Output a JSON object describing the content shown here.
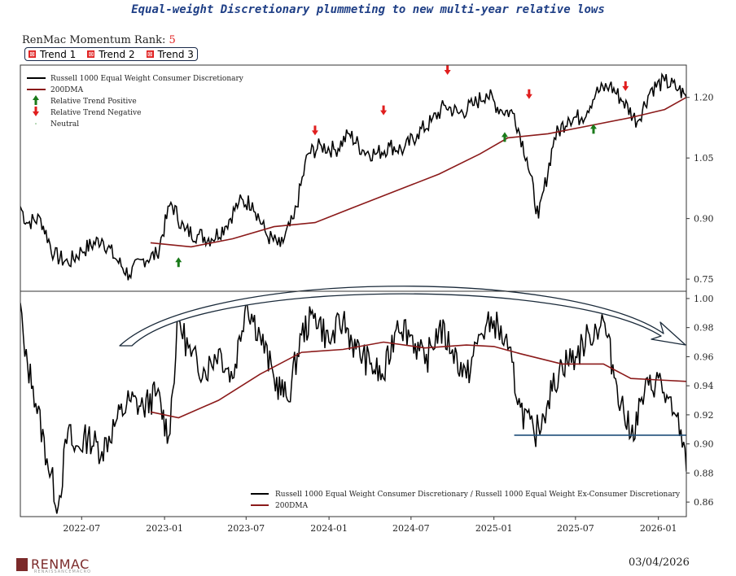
{
  "header": {
    "title": "Equal-weight Discretionary plummeting to new multi-year relative lows",
    "rank_label": "RenMac Momentum Rank: ",
    "rank_value": "5",
    "trends": [
      "Trend 1",
      "Trend 2",
      "Trend 3"
    ]
  },
  "footer": {
    "brand": "RENMAC",
    "brand_sub": "RENAISSANCEMACRO",
    "date": "03/04/2026"
  },
  "colors": {
    "price": "#000000",
    "dma": "#8b1a1a",
    "positive": "#1a7a1a",
    "negative": "#e01e1e",
    "support_line": "#1f4e79",
    "arrow": "#1a2a3a"
  },
  "chart_data": [
    {
      "type": "line",
      "title": "",
      "ylim": [
        0.72,
        1.28
      ],
      "xlim": [
        "2022-02-15",
        "2026-03-04"
      ],
      "yticks": [
        "0.75",
        "0.90",
        "1.05",
        "1.20"
      ],
      "legend": [
        "Russell 1000 Equal Weight Consumer Discretionary",
        "200DMA",
        "Relative Trend Positive",
        "Relative Trend Negative",
        "Neutral"
      ],
      "legend_position": "top-left",
      "series": [
        {
          "name": "Russell 1000 Equal Weight Consumer Discretionary",
          "x": [
            "2022-02-15",
            "2022-03-01",
            "2022-04-01",
            "2022-05-01",
            "2022-06-01",
            "2022-07-01",
            "2022-08-15",
            "2022-09-15",
            "2022-10-15",
            "2022-11-15",
            "2022-12-15",
            "2023-01-15",
            "2023-02-15",
            "2023-03-15",
            "2023-04-15",
            "2023-05-15",
            "2023-06-15",
            "2023-07-15",
            "2023-08-15",
            "2023-09-15",
            "2023-10-15",
            "2023-11-15",
            "2023-12-15",
            "2024-01-15",
            "2024-02-15",
            "2024-03-15",
            "2024-04-15",
            "2024-05-15",
            "2024-06-15",
            "2024-07-15",
            "2024-08-15",
            "2024-09-15",
            "2024-10-15",
            "2024-11-15",
            "2024-12-15",
            "2025-01-15",
            "2025-02-15",
            "2025-03-15",
            "2025-04-10",
            "2025-05-15",
            "2025-06-15",
            "2025-07-15",
            "2025-08-15",
            "2025-09-15",
            "2025-10-15",
            "2025-11-15",
            "2025-12-15",
            "2026-01-15",
            "2026-02-15",
            "2026-03-04"
          ],
          "values": [
            0.93,
            0.89,
            0.9,
            0.81,
            0.79,
            0.82,
            0.85,
            0.8,
            0.76,
            0.8,
            0.81,
            0.94,
            0.87,
            0.86,
            0.85,
            0.88,
            0.94,
            0.94,
            0.86,
            0.83,
            0.9,
            1.06,
            1.08,
            1.07,
            1.11,
            1.07,
            1.06,
            1.08,
            1.07,
            1.11,
            1.14,
            1.18,
            1.16,
            1.18,
            1.21,
            1.17,
            1.16,
            1.05,
            0.9,
            1.1,
            1.15,
            1.15,
            1.21,
            1.23,
            1.19,
            1.14,
            1.22,
            1.24,
            1.22,
            1.2
          ]
        },
        {
          "name": "200DMA",
          "x": [
            "2022-12-01",
            "2023-03-01",
            "2023-06-01",
            "2023-09-01",
            "2023-12-01",
            "2024-03-01",
            "2024-06-01",
            "2024-09-01",
            "2024-12-01",
            "2025-02-01",
            "2025-05-01",
            "2025-08-01",
            "2025-11-01",
            "2026-01-15",
            "2026-03-04"
          ],
          "values": [
            0.84,
            0.83,
            0.85,
            0.88,
            0.89,
            0.93,
            0.97,
            1.01,
            1.06,
            1.1,
            1.11,
            1.13,
            1.15,
            1.17,
            1.2
          ]
        }
      ],
      "markers": {
        "positive": [
          [
            "2023-02-01",
            0.79
          ],
          [
            "2025-01-25",
            1.1
          ],
          [
            "2025-08-10",
            1.12
          ]
        ],
        "negative": [
          [
            "2023-12-01",
            1.12
          ],
          [
            "2024-05-01",
            1.17
          ],
          [
            "2024-09-20",
            1.27
          ],
          [
            "2025-03-20",
            1.21
          ],
          [
            "2025-10-20",
            1.23
          ]
        ]
      }
    },
    {
      "type": "line",
      "title": "",
      "ylim": [
        0.85,
        1.005
      ],
      "xlim": [
        "2022-02-15",
        "2026-03-04"
      ],
      "yticks": [
        "0.86",
        "0.88",
        "0.90",
        "0.92",
        "0.94",
        "0.96",
        "0.98",
        "1.00"
      ],
      "xticks": [
        "2022-07",
        "2023-01",
        "2023-07",
        "2024-01",
        "2024-07",
        "2025-01",
        "2025-07",
        "2026-01"
      ],
      "legend": [
        "Russell 1000 Equal Weight Consumer Discretionary / Russell 1000 Equal Weight Ex-Consumer Discretionary",
        "200DMA"
      ],
      "legend_position": "bottom-right",
      "series": [
        {
          "name": "Russell 1000 Equal Weight Consumer Discretionary / Russell 1000 Equal Weight Ex-Consumer Discretionary",
          "x": [
            "2022-02-15",
            "2022-02-25",
            "2022-03-15",
            "2022-04-15",
            "2022-05-10",
            "2022-06-01",
            "2022-06-15",
            "2022-07-15",
            "2022-08-15",
            "2022-09-15",
            "2022-10-15",
            "2022-11-15",
            "2022-12-15",
            "2023-01-10",
            "2023-02-01",
            "2023-03-01",
            "2023-04-01",
            "2023-05-01",
            "2023-06-01",
            "2023-07-01",
            "2023-08-01",
            "2023-09-01",
            "2023-10-01",
            "2023-11-01",
            "2023-12-01",
            "2024-01-01",
            "2024-02-01",
            "2024-03-01",
            "2024-04-01",
            "2024-05-01",
            "2024-06-01",
            "2024-07-01",
            "2024-08-01",
            "2024-09-01",
            "2024-10-01",
            "2024-11-01",
            "2024-12-01",
            "2025-01-01",
            "2025-02-01",
            "2025-03-01",
            "2025-04-01",
            "2025-05-01",
            "2025-06-01",
            "2025-07-01",
            "2025-08-01",
            "2025-09-01",
            "2025-10-01",
            "2025-11-01",
            "2025-12-01",
            "2026-01-01",
            "2026-02-01",
            "2026-02-20",
            "2026-03-04"
          ],
          "values": [
            0.997,
            0.96,
            0.94,
            0.89,
            0.857,
            0.91,
            0.895,
            0.905,
            0.895,
            0.915,
            0.93,
            0.925,
            0.935,
            0.905,
            0.985,
            0.96,
            0.95,
            0.965,
            0.945,
            0.998,
            0.975,
            0.945,
            0.93,
            0.975,
            0.99,
            0.97,
            0.985,
            0.965,
            0.955,
            0.945,
            0.985,
            0.975,
            0.955,
            0.98,
            0.965,
            0.945,
            0.975,
            0.985,
            0.965,
            0.925,
            0.905,
            0.93,
            0.955,
            0.96,
            0.975,
            0.985,
            0.94,
            0.905,
            0.935,
            0.945,
            0.92,
            0.91,
            0.881
          ]
        },
        {
          "name": "200DMA",
          "x": [
            "2022-12-01",
            "2023-02-01",
            "2023-05-01",
            "2023-08-01",
            "2023-11-01",
            "2024-02-01",
            "2024-05-01",
            "2024-08-01",
            "2024-11-01",
            "2025-01-01",
            "2025-03-01",
            "2025-06-01",
            "2025-09-01",
            "2025-11-01",
            "2026-01-01",
            "2026-03-04"
          ],
          "values": [
            0.922,
            0.918,
            0.93,
            0.948,
            0.963,
            0.965,
            0.97,
            0.966,
            0.968,
            0.967,
            0.962,
            0.955,
            0.955,
            0.945,
            0.944,
            0.943
          ]
        }
      ],
      "support_level": 0.906,
      "support_start": "2025-02-15"
    }
  ]
}
